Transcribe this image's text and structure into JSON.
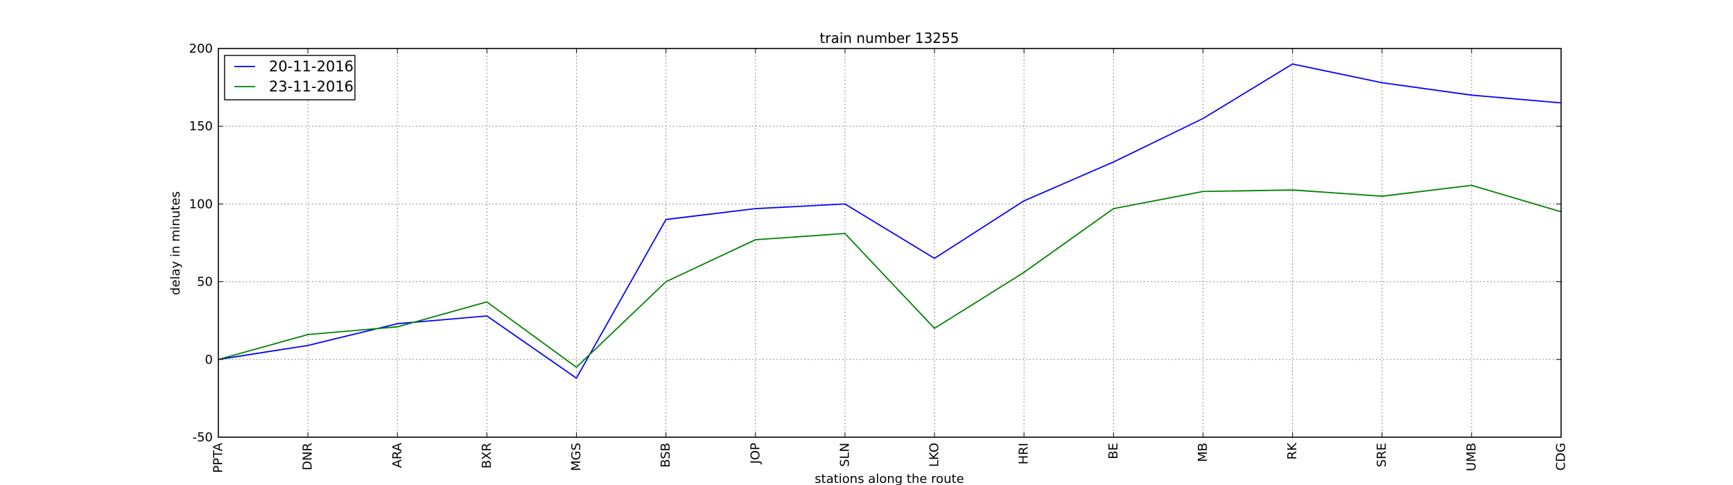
{
  "chart_data": {
    "type": "line",
    "title": "train number 13255",
    "xlabel": "stations along the route",
    "ylabel": "delay in minutes",
    "categories": [
      "PPTA",
      "DNR",
      "ARA",
      "BXR",
      "MGS",
      "BSB",
      "JOP",
      "SLN",
      "LKO",
      "HRI",
      "BE",
      "MB",
      "RK",
      "SRE",
      "UMB",
      "CDG"
    ],
    "ylim": [
      -50,
      200
    ],
    "yticks": [
      -50,
      0,
      50,
      100,
      150,
      200
    ],
    "grid": true,
    "legend_position": "top-left",
    "series": [
      {
        "name": "20-11-2016",
        "color": "#0000ff",
        "values": [
          0,
          9,
          23,
          28,
          -12,
          90,
          97,
          100,
          65,
          102,
          127,
          155,
          190,
          178,
          170,
          165
        ]
      },
      {
        "name": "23-11-2016",
        "color": "#008000",
        "values": [
          0,
          16,
          21,
          37,
          -5,
          50,
          77,
          81,
          20,
          56,
          97,
          108,
          109,
          105,
          112,
          95
        ]
      }
    ]
  }
}
